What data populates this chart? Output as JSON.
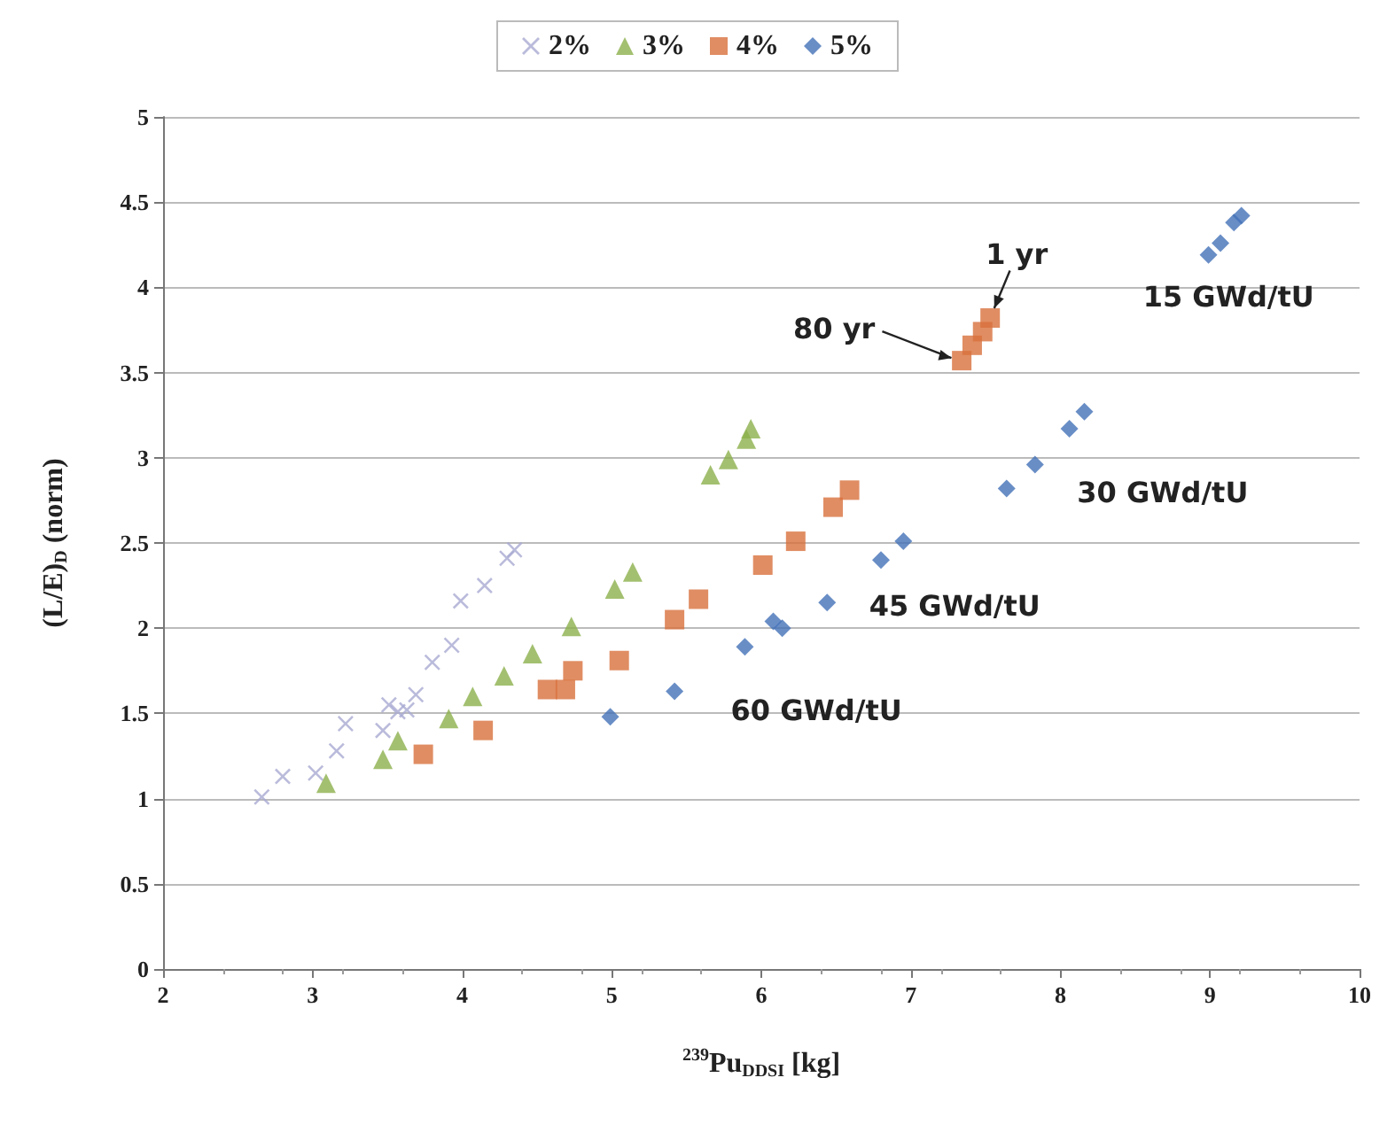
{
  "chart_data": {
    "type": "scatter",
    "xlabel": "$^{239}$Pu$_{DDSI}$ [kg]",
    "ylabel": "(L/E)$_{D}$ (norm)",
    "xlim": [
      2,
      10
    ],
    "xticks": [
      2,
      3,
      4,
      5,
      6,
      7,
      8,
      9,
      10
    ],
    "ylim": [
      0,
      5
    ],
    "yticks": [
      0,
      0.5,
      1,
      1.5,
      2,
      2.5,
      3,
      3.5,
      4,
      4.5,
      5
    ],
    "grid": "y",
    "legend": "top",
    "series": [
      {
        "name": "2%",
        "color": "#a9aad2",
        "marker": "cross",
        "x": [
          2.66,
          2.8,
          3.02,
          3.16,
          3.22,
          3.47,
          3.51,
          3.57,
          3.63,
          3.69,
          3.8,
          3.93,
          3.99,
          4.15,
          4.3,
          4.35
        ],
        "values": [
          1.01,
          1.13,
          1.15,
          1.28,
          1.44,
          1.4,
          1.55,
          1.51,
          1.52,
          1.61,
          1.8,
          1.9,
          2.16,
          2.25,
          2.41,
          2.46
        ]
      },
      {
        "name": "3%",
        "color": "#8cb04c",
        "marker": "triangle",
        "x": [
          3.09,
          3.47,
          3.57,
          3.91,
          4.07,
          4.28,
          4.47,
          4.73,
          5.02,
          5.14,
          5.66,
          5.78,
          5.9,
          5.93
        ],
        "values": [
          1.09,
          1.23,
          1.34,
          1.47,
          1.6,
          1.72,
          1.85,
          2.01,
          2.23,
          2.33,
          2.9,
          2.99,
          3.11,
          3.17
        ]
      },
      {
        "name": "4%",
        "color": "#d8703c",
        "marker": "square",
        "x": [
          3.74,
          4.14,
          4.57,
          4.69,
          4.74,
          5.05,
          5.42,
          5.58,
          6.01,
          6.23,
          6.48,
          6.59,
          7.34,
          7.41,
          7.48,
          7.53
        ],
        "values": [
          1.26,
          1.4,
          1.64,
          1.64,
          1.75,
          1.81,
          2.05,
          2.17,
          2.37,
          2.51,
          2.71,
          2.81,
          3.57,
          3.66,
          3.74,
          3.82
        ]
      },
      {
        "name": "5%",
        "color": "#4472b8",
        "marker": "diamond",
        "x": [
          4.99,
          5.42,
          5.89,
          6.08,
          6.14,
          6.44,
          6.8,
          6.95,
          7.64,
          7.83,
          8.06,
          8.16,
          8.99,
          9.07,
          9.16,
          9.21
        ],
        "values": [
          1.48,
          1.63,
          1.89,
          2.04,
          2.0,
          2.15,
          2.4,
          2.51,
          2.82,
          2.96,
          3.17,
          3.27,
          4.19,
          4.26,
          4.38,
          4.42
        ]
      }
    ],
    "annotations": [
      {
        "text": "1 yr",
        "x": 7.53,
        "y": 3.82
      },
      {
        "text": "80 yr",
        "x": 7.34,
        "y": 3.57
      },
      {
        "text": "15 GWd/tU",
        "x": 9.16,
        "y": 4.38
      },
      {
        "text": "30 GWd/tU",
        "x": 7.83,
        "y": 2.96
      },
      {
        "text": "45 GWd/tU",
        "x": 6.44,
        "y": 2.15
      },
      {
        "text": "60 GWd/tU",
        "x": 5.42,
        "y": 1.63
      }
    ]
  }
}
